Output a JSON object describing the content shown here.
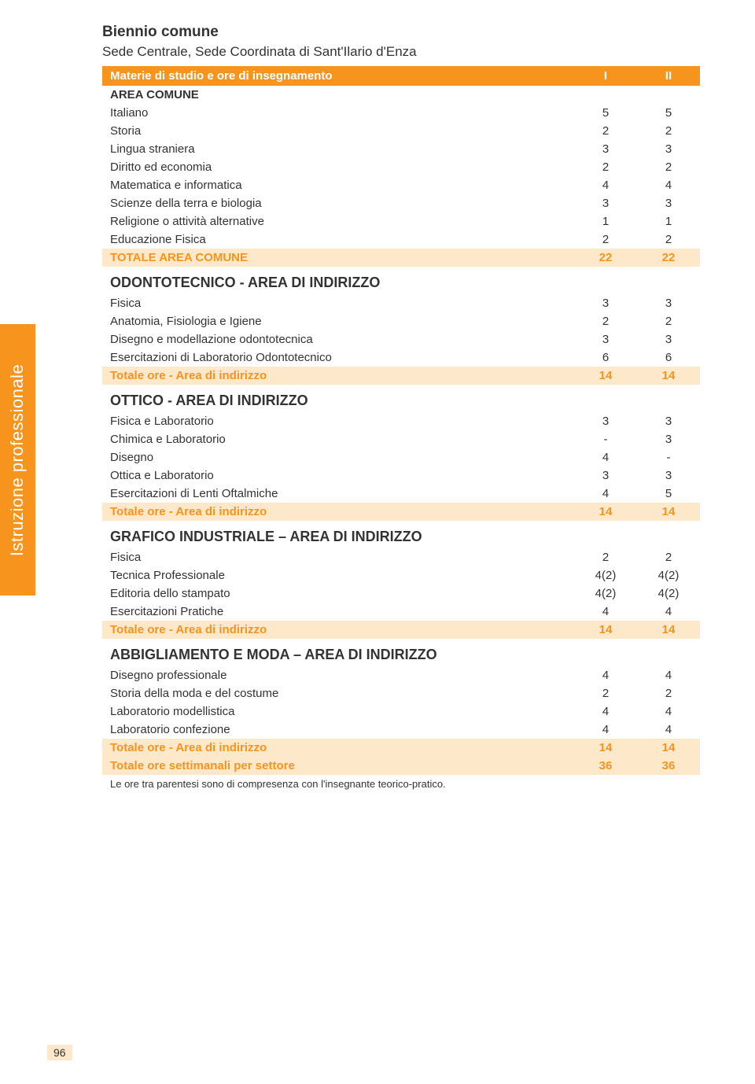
{
  "sidebar": {
    "label": "Istruzione professionale"
  },
  "header": {
    "title": "Biennio comune",
    "subtitle": "Sede Centrale, Sede Coordinata di Sant'Ilario d'Enza",
    "columnsHeader": "Materie di studio e ore di insegnamento",
    "col_I": "I",
    "col_II": "II"
  },
  "areaComune": {
    "heading": "AREA COMUNE",
    "rows": [
      {
        "label": "Italiano",
        "v1": "5",
        "v2": "5"
      },
      {
        "label": "Storia",
        "v1": "2",
        "v2": "2"
      },
      {
        "label": "Lingua straniera",
        "v1": "3",
        "v2": "3"
      },
      {
        "label": "Diritto ed economia",
        "v1": "2",
        "v2": "2"
      },
      {
        "label": "Matematica e informatica",
        "v1": "4",
        "v2": "4"
      },
      {
        "label": "Scienze della terra e biologia",
        "v1": "3",
        "v2": "3"
      },
      {
        "label": "Religione o attività alternative",
        "v1": "1",
        "v2": "1"
      },
      {
        "label": "Educazione Fisica",
        "v1": "2",
        "v2": "2"
      }
    ],
    "total": {
      "label": "TOTALE AREA COMUNE",
      "v1": "22",
      "v2": "22"
    }
  },
  "odonto": {
    "heading": "ODONTOTECNICO - AREA DI INDIRIZZO",
    "rows": [
      {
        "label": "Fisica",
        "v1": "3",
        "v2": "3"
      },
      {
        "label": "Anatomia, Fisiologia e Igiene",
        "v1": "2",
        "v2": "2"
      },
      {
        "label": "Disegno e modellazione odontotecnica",
        "v1": "3",
        "v2": "3"
      },
      {
        "label": "Esercitazioni di Laboratorio Odontotecnico",
        "v1": "6",
        "v2": "6"
      }
    ],
    "total": {
      "label": "Totale ore - Area di indirizzo",
      "v1": "14",
      "v2": "14"
    }
  },
  "ottico": {
    "heading": "OTTICO - AREA DI INDIRIZZO",
    "rows": [
      {
        "label": "Fisica e Laboratorio",
        "v1": "3",
        "v2": "3"
      },
      {
        "label": "Chimica e Laboratorio",
        "v1": "-",
        "v2": "3"
      },
      {
        "label": "Disegno",
        "v1": "4",
        "v2": "-"
      },
      {
        "label": "Ottica e Laboratorio",
        "v1": "3",
        "v2": "3"
      },
      {
        "label": "Esercitazioni di Lenti Oftalmiche",
        "v1": "4",
        "v2": "5"
      }
    ],
    "total": {
      "label": "Totale ore - Area di indirizzo",
      "v1": "14",
      "v2": "14"
    }
  },
  "grafico": {
    "heading": "GRAFICO INDUSTRIALE – AREA DI INDIRIZZO",
    "rows": [
      {
        "label": "Fisica",
        "v1": "2",
        "v2": "2"
      },
      {
        "label": "Tecnica Professionale",
        "v1": "4(2)",
        "v2": "4(2)"
      },
      {
        "label": "Editoria dello stampato",
        "v1": "4(2)",
        "v2": "4(2)"
      },
      {
        "label": "Esercitazioni Pratiche",
        "v1": "4",
        "v2": "4"
      }
    ],
    "total": {
      "label": "Totale ore - Area di indirizzo",
      "v1": "14",
      "v2": "14"
    }
  },
  "moda": {
    "heading": "ABBIGLIAMENTO E MODA – AREA DI INDIRIZZO",
    "rows": [
      {
        "label": "Disegno professionale",
        "v1": "4",
        "v2": "4"
      },
      {
        "label": "Storia della moda e del costume",
        "v1": "2",
        "v2": "2"
      },
      {
        "label": "Laboratorio modellistica",
        "v1": "4",
        "v2": "4"
      },
      {
        "label": "Laboratorio confezione",
        "v1": "4",
        "v2": "4"
      }
    ],
    "total": {
      "label": "Totale ore - Area di indirizzo",
      "v1": "14",
      "v2": "14"
    }
  },
  "grandTotal": {
    "label": "Totale ore settimanali per settore",
    "v1": "36",
    "v2": "36"
  },
  "footnote": "Le ore tra parentesi sono di compresenza con l'insegnante teorico-pratico.",
  "pageNumber": "96",
  "colors": {
    "orange": "#f7941e",
    "lightOrange": "#fde8c9",
    "text": "#333333",
    "white": "#ffffff"
  }
}
